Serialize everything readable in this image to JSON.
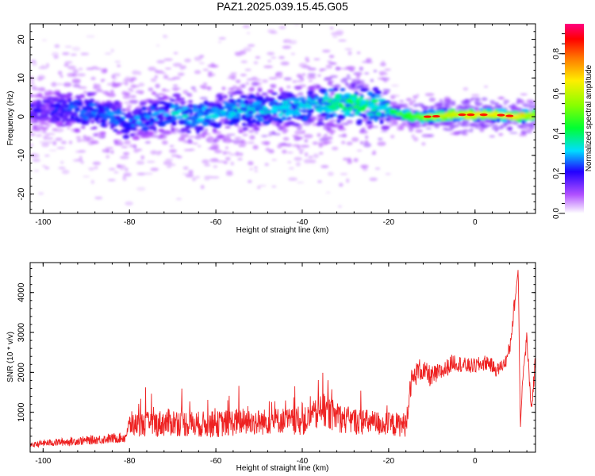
{
  "title": "PAZ1.2025.039.15.45.G05",
  "chart_data": [
    {
      "type": "heatmap",
      "title": "PAZ1.2025.039.15.45.G05",
      "xlabel": "Height of straight line (km)",
      "ylabel": "Frequency (Hz)",
      "xlim": [
        -103,
        14
      ],
      "ylim": [
        -25,
        24
      ],
      "x_ticks": [
        -100,
        -80,
        -60,
        -40,
        -20,
        0
      ],
      "y_ticks": [
        -20,
        -10,
        0,
        10,
        20
      ],
      "colorbar": {
        "label": "Normalized spectral amplitude",
        "range": [
          0,
          0.95
        ],
        "ticks": [
          0.0,
          0.2,
          0.4,
          0.6,
          0.8
        ],
        "colormap": "rainbow (white-violet-blue-cyan-green-yellow-red-magenta)"
      },
      "ridge": {
        "x": [
          -100,
          -95,
          -90,
          -85,
          -80,
          -75,
          -70,
          -65,
          -60,
          -55,
          -50,
          -45,
          -40,
          -35,
          -30,
          -25,
          -20,
          -15,
          -10,
          -5,
          0,
          5,
          10,
          14
        ],
        "frequency": [
          1.5,
          2,
          1.5,
          0.5,
          -2,
          0,
          1,
          0,
          1,
          1.5,
          1.5,
          2,
          2.5,
          3,
          3.5,
          3,
          1.5,
          0,
          0,
          0.5,
          0.5,
          0.5,
          0,
          0.5
        ],
        "amplitude": [
          0.2,
          0.25,
          0.3,
          0.3,
          0.3,
          0.3,
          0.35,
          0.35,
          0.35,
          0.35,
          0.35,
          0.35,
          0.35,
          0.4,
          0.45,
          0.45,
          0.4,
          0.6,
          0.75,
          0.8,
          0.85,
          0.85,
          0.85,
          0.7
        ]
      }
    },
    {
      "type": "line",
      "xlabel": "Height of straight line (km)",
      "ylabel": "SNR (10 * v/v)",
      "xlim": [
        -103,
        14
      ],
      "ylim": [
        0,
        4750
      ],
      "x_ticks": [
        -100,
        -80,
        -60,
        -40,
        -20,
        0
      ],
      "y_ticks": [
        1000,
        2000,
        3000,
        4000
      ],
      "color": "#ee2222",
      "series": [
        {
          "x": [
            -103,
            -100,
            -95,
            -90,
            -85,
            -81,
            -80,
            -75,
            -70,
            -65,
            -60,
            -55,
            -50,
            -45,
            -40,
            -35,
            -30,
            -25,
            -20,
            -16,
            -15,
            -13,
            -10,
            -7,
            -5,
            -2,
            0,
            3,
            5,
            7,
            8,
            9,
            10,
            10.5,
            11,
            12,
            13,
            14
          ],
          "mean": [
            150,
            200,
            230,
            260,
            300,
            330,
            600,
            600,
            650,
            600,
            600,
            650,
            650,
            700,
            650,
            900,
            700,
            650,
            600,
            600,
            1600,
            2000,
            1800,
            2000,
            2200,
            2100,
            2100,
            2200,
            2000,
            2200,
            2500,
            3500,
            4600,
            600,
            1800,
            2800,
            1000,
            2200
          ],
          "spread": [
            50,
            80,
            90,
            100,
            110,
            120,
            250,
            300,
            320,
            300,
            300,
            320,
            300,
            300,
            300,
            400,
            320,
            300,
            280,
            280,
            300,
            250,
            250,
            200,
            200,
            180,
            180,
            180,
            150,
            150,
            200,
            200,
            100,
            50,
            100,
            200,
            100,
            250
          ]
        }
      ]
    }
  ]
}
